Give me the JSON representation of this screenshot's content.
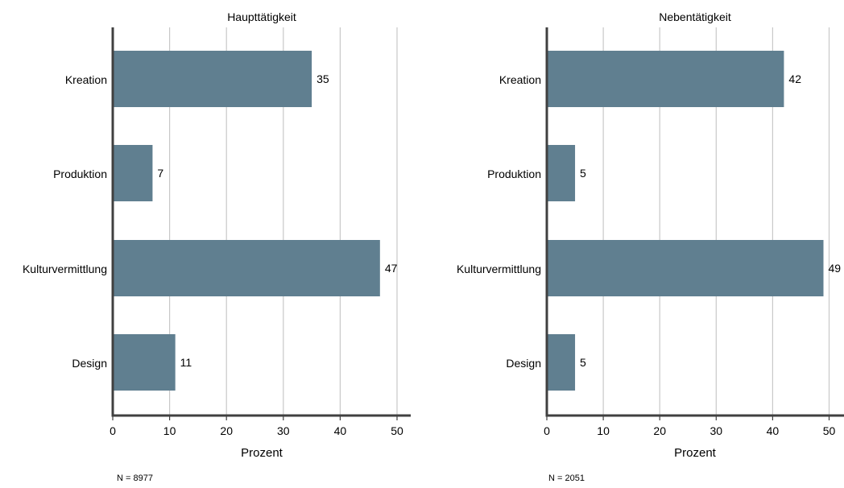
{
  "colors": {
    "bar": "#607f90",
    "axis": "#404040",
    "grid": "#c8c8c8",
    "text": "#000000"
  },
  "chart_data": [
    {
      "type": "bar",
      "orientation": "horizontal",
      "title": "Haupttätigkeit",
      "categories": [
        "Kreation",
        "Produktion",
        "Kulturvermittlung",
        "Design"
      ],
      "values": [
        35,
        7,
        47,
        11
      ],
      "value_labels": [
        "35",
        "7",
        "47",
        "11"
      ],
      "xlabel": "Prozent",
      "xlim": [
        0,
        52
      ],
      "xticks": [
        0,
        10,
        20,
        30,
        40,
        50
      ],
      "grid": "vertical",
      "note": "N = 8977"
    },
    {
      "type": "bar",
      "orientation": "horizontal",
      "title": "Nebentätigkeit",
      "categories": [
        "Kreation",
        "Produktion",
        "Kulturvermittlung",
        "Design"
      ],
      "values": [
        42,
        5,
        49,
        5
      ],
      "value_labels": [
        "42",
        "5",
        "49",
        "5"
      ],
      "xlabel": "Prozent",
      "xlim": [
        0,
        52
      ],
      "xticks": [
        0,
        10,
        20,
        30,
        40,
        50
      ],
      "grid": "vertical",
      "note": "N = 2051"
    }
  ]
}
